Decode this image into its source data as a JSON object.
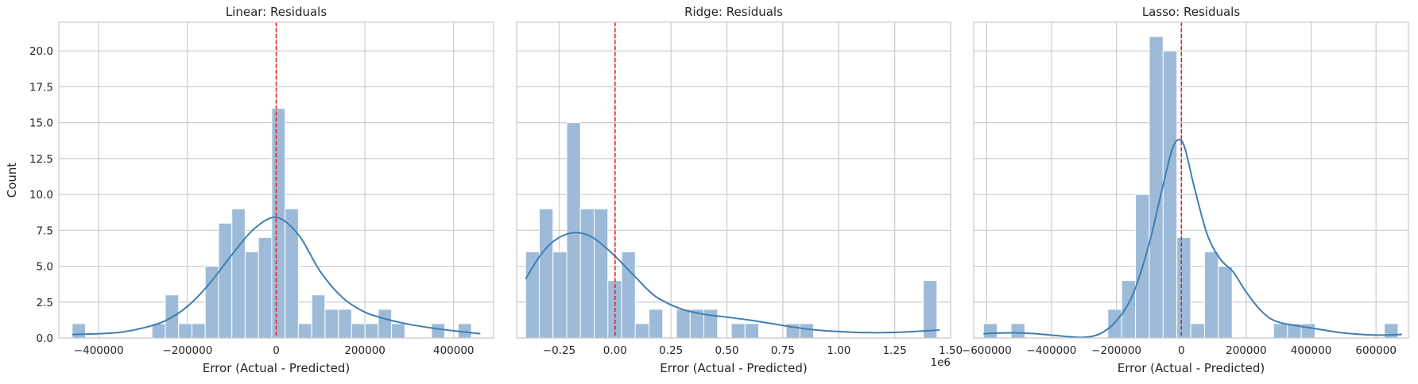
{
  "colors": {
    "bar_fill": "#9dbbd8",
    "bar_stroke": "#ffffff",
    "kde_line": "#3f7eb4",
    "zero_line": "#e41a1c",
    "grid": "#cccccc",
    "spine": "#cccccc",
    "background": "#ffffff"
  },
  "chart_data": [
    {
      "type": "histogram",
      "title": "Linear: Residuals",
      "xlabel": "Error (Actual - Predicted)",
      "ylabel": "Count",
      "xlim": [
        -490000,
        490000
      ],
      "ylim": [
        0,
        22
      ],
      "xticks": [
        -400000,
        -200000,
        0,
        200000,
        400000
      ],
      "xtick_labels": [
        "−400000",
        "−200000",
        "0",
        "200000",
        "400000"
      ],
      "yticks": [
        0,
        2.5,
        5,
        7.5,
        10,
        12.5,
        15,
        17.5,
        20
      ],
      "ytick_labels": [
        "0.0",
        "2.5",
        "5.0",
        "7.5",
        "10.0",
        "12.5",
        "15.0",
        "17.5",
        "20.0"
      ],
      "offset_label": "",
      "grid": true,
      "vline_x": 0,
      "bin_start": -460000,
      "bin_width": 30000,
      "counts": [
        1,
        0,
        0,
        0,
        0,
        0,
        1,
        3,
        1,
        1,
        5,
        8,
        9,
        6,
        7,
        16,
        9,
        1,
        3,
        2,
        2,
        1,
        1,
        2,
        1,
        0,
        0,
        1,
        0,
        1
      ],
      "kde": {
        "x": [
          -460000,
          -400000,
          -350000,
          -300000,
          -250000,
          -200000,
          -150000,
          -100000,
          -50000,
          0,
          50000,
          100000,
          150000,
          200000,
          250000,
          300000,
          350000,
          400000,
          460000
        ],
        "y": [
          0.25,
          0.3,
          0.4,
          0.7,
          1.2,
          2.2,
          3.8,
          5.8,
          7.6,
          8.4,
          7.2,
          4.6,
          2.8,
          1.8,
          1.3,
          0.95,
          0.7,
          0.5,
          0.3
        ]
      }
    },
    {
      "type": "histogram",
      "title": "Ridge: Residuals",
      "xlabel": "Error (Actual - Predicted)",
      "ylabel": "",
      "xlim": [
        -0.44,
        1.5
      ],
      "ylim": [
        0,
        22
      ],
      "xticks": [
        -0.25,
        0,
        0.25,
        0.5,
        0.75,
        1.0,
        1.25,
        1.5
      ],
      "xtick_labels": [
        "−0.25",
        "0.00",
        "0.25",
        "0.50",
        "0.75",
        "1.00",
        "1.25",
        "1.50"
      ],
      "yticks": [
        0,
        2.5,
        5,
        7.5,
        10,
        12.5,
        15,
        17.5,
        20
      ],
      "ytick_labels": [],
      "offset_label": "1e6",
      "grid": true,
      "vline_x": 0,
      "bin_start": -0.4,
      "bin_width": 0.0613,
      "counts": [
        6,
        9,
        6,
        15,
        9,
        9,
        4,
        6,
        1,
        2,
        0,
        2,
        2,
        2,
        0,
        1,
        1,
        0,
        0,
        1,
        1,
        0,
        0,
        0,
        0,
        0,
        0,
        0,
        0,
        4
      ],
      "kde": {
        "x": [
          -0.4,
          -0.35,
          -0.3,
          -0.25,
          -0.2,
          -0.15,
          -0.1,
          -0.05,
          0.0,
          0.05,
          0.1,
          0.15,
          0.2,
          0.3,
          0.4,
          0.5,
          0.6,
          0.7,
          0.8,
          0.9,
          1.0,
          1.1,
          1.2,
          1.3,
          1.45
        ],
        "y": [
          4.1,
          5.4,
          6.4,
          7.0,
          7.3,
          7.3,
          7.0,
          6.4,
          5.7,
          4.9,
          4.1,
          3.3,
          2.7,
          2.0,
          1.65,
          1.45,
          1.25,
          1.0,
          0.75,
          0.55,
          0.45,
          0.38,
          0.37,
          0.42,
          0.55
        ]
      }
    },
    {
      "type": "histogram",
      "title": "Lasso: Residuals",
      "xlabel": "Error (Actual - Predicted)",
      "ylabel": "",
      "xlim": [
        -640000,
        700000
      ],
      "ylim": [
        0,
        22
      ],
      "xticks": [
        -600000,
        -400000,
        -200000,
        0,
        200000,
        400000,
        600000
      ],
      "xtick_labels": [
        "−600000",
        "−400000",
        "−200000",
        "0",
        "200000",
        "400000",
        "600000"
      ],
      "yticks": [
        0,
        2.5,
        5,
        7.5,
        10,
        12.5,
        15,
        17.5,
        20
      ],
      "ytick_labels": [],
      "offset_label": "",
      "grid": true,
      "vline_x": 0,
      "bin_start": -610000,
      "bin_width": 42600,
      "counts": [
        1,
        0,
        1,
        0,
        0,
        0,
        0,
        0,
        0,
        2,
        4,
        10,
        21,
        20,
        7,
        1,
        6,
        5,
        0,
        0,
        0,
        1,
        1,
        1,
        0,
        0,
        0,
        0,
        0,
        1
      ],
      "kde": {
        "x": [
          -610000,
          -550000,
          -500000,
          -450000,
          -400000,
          -350000,
          -300000,
          -250000,
          -200000,
          -150000,
          -100000,
          -60000,
          -30000,
          -10000,
          10000,
          40000,
          80000,
          120000,
          160000,
          200000,
          250000,
          300000,
          400000,
          500000,
          600000,
          680000
        ],
        "y": [
          0.3,
          0.35,
          0.35,
          0.3,
          0.2,
          0.1,
          0.05,
          0.3,
          1.2,
          3.0,
          6.5,
          10.3,
          13.0,
          13.8,
          13.3,
          10.5,
          7.2,
          5.5,
          4.6,
          3.2,
          1.8,
          1.1,
          0.7,
          0.35,
          0.2,
          0.25
        ]
      }
    }
  ]
}
